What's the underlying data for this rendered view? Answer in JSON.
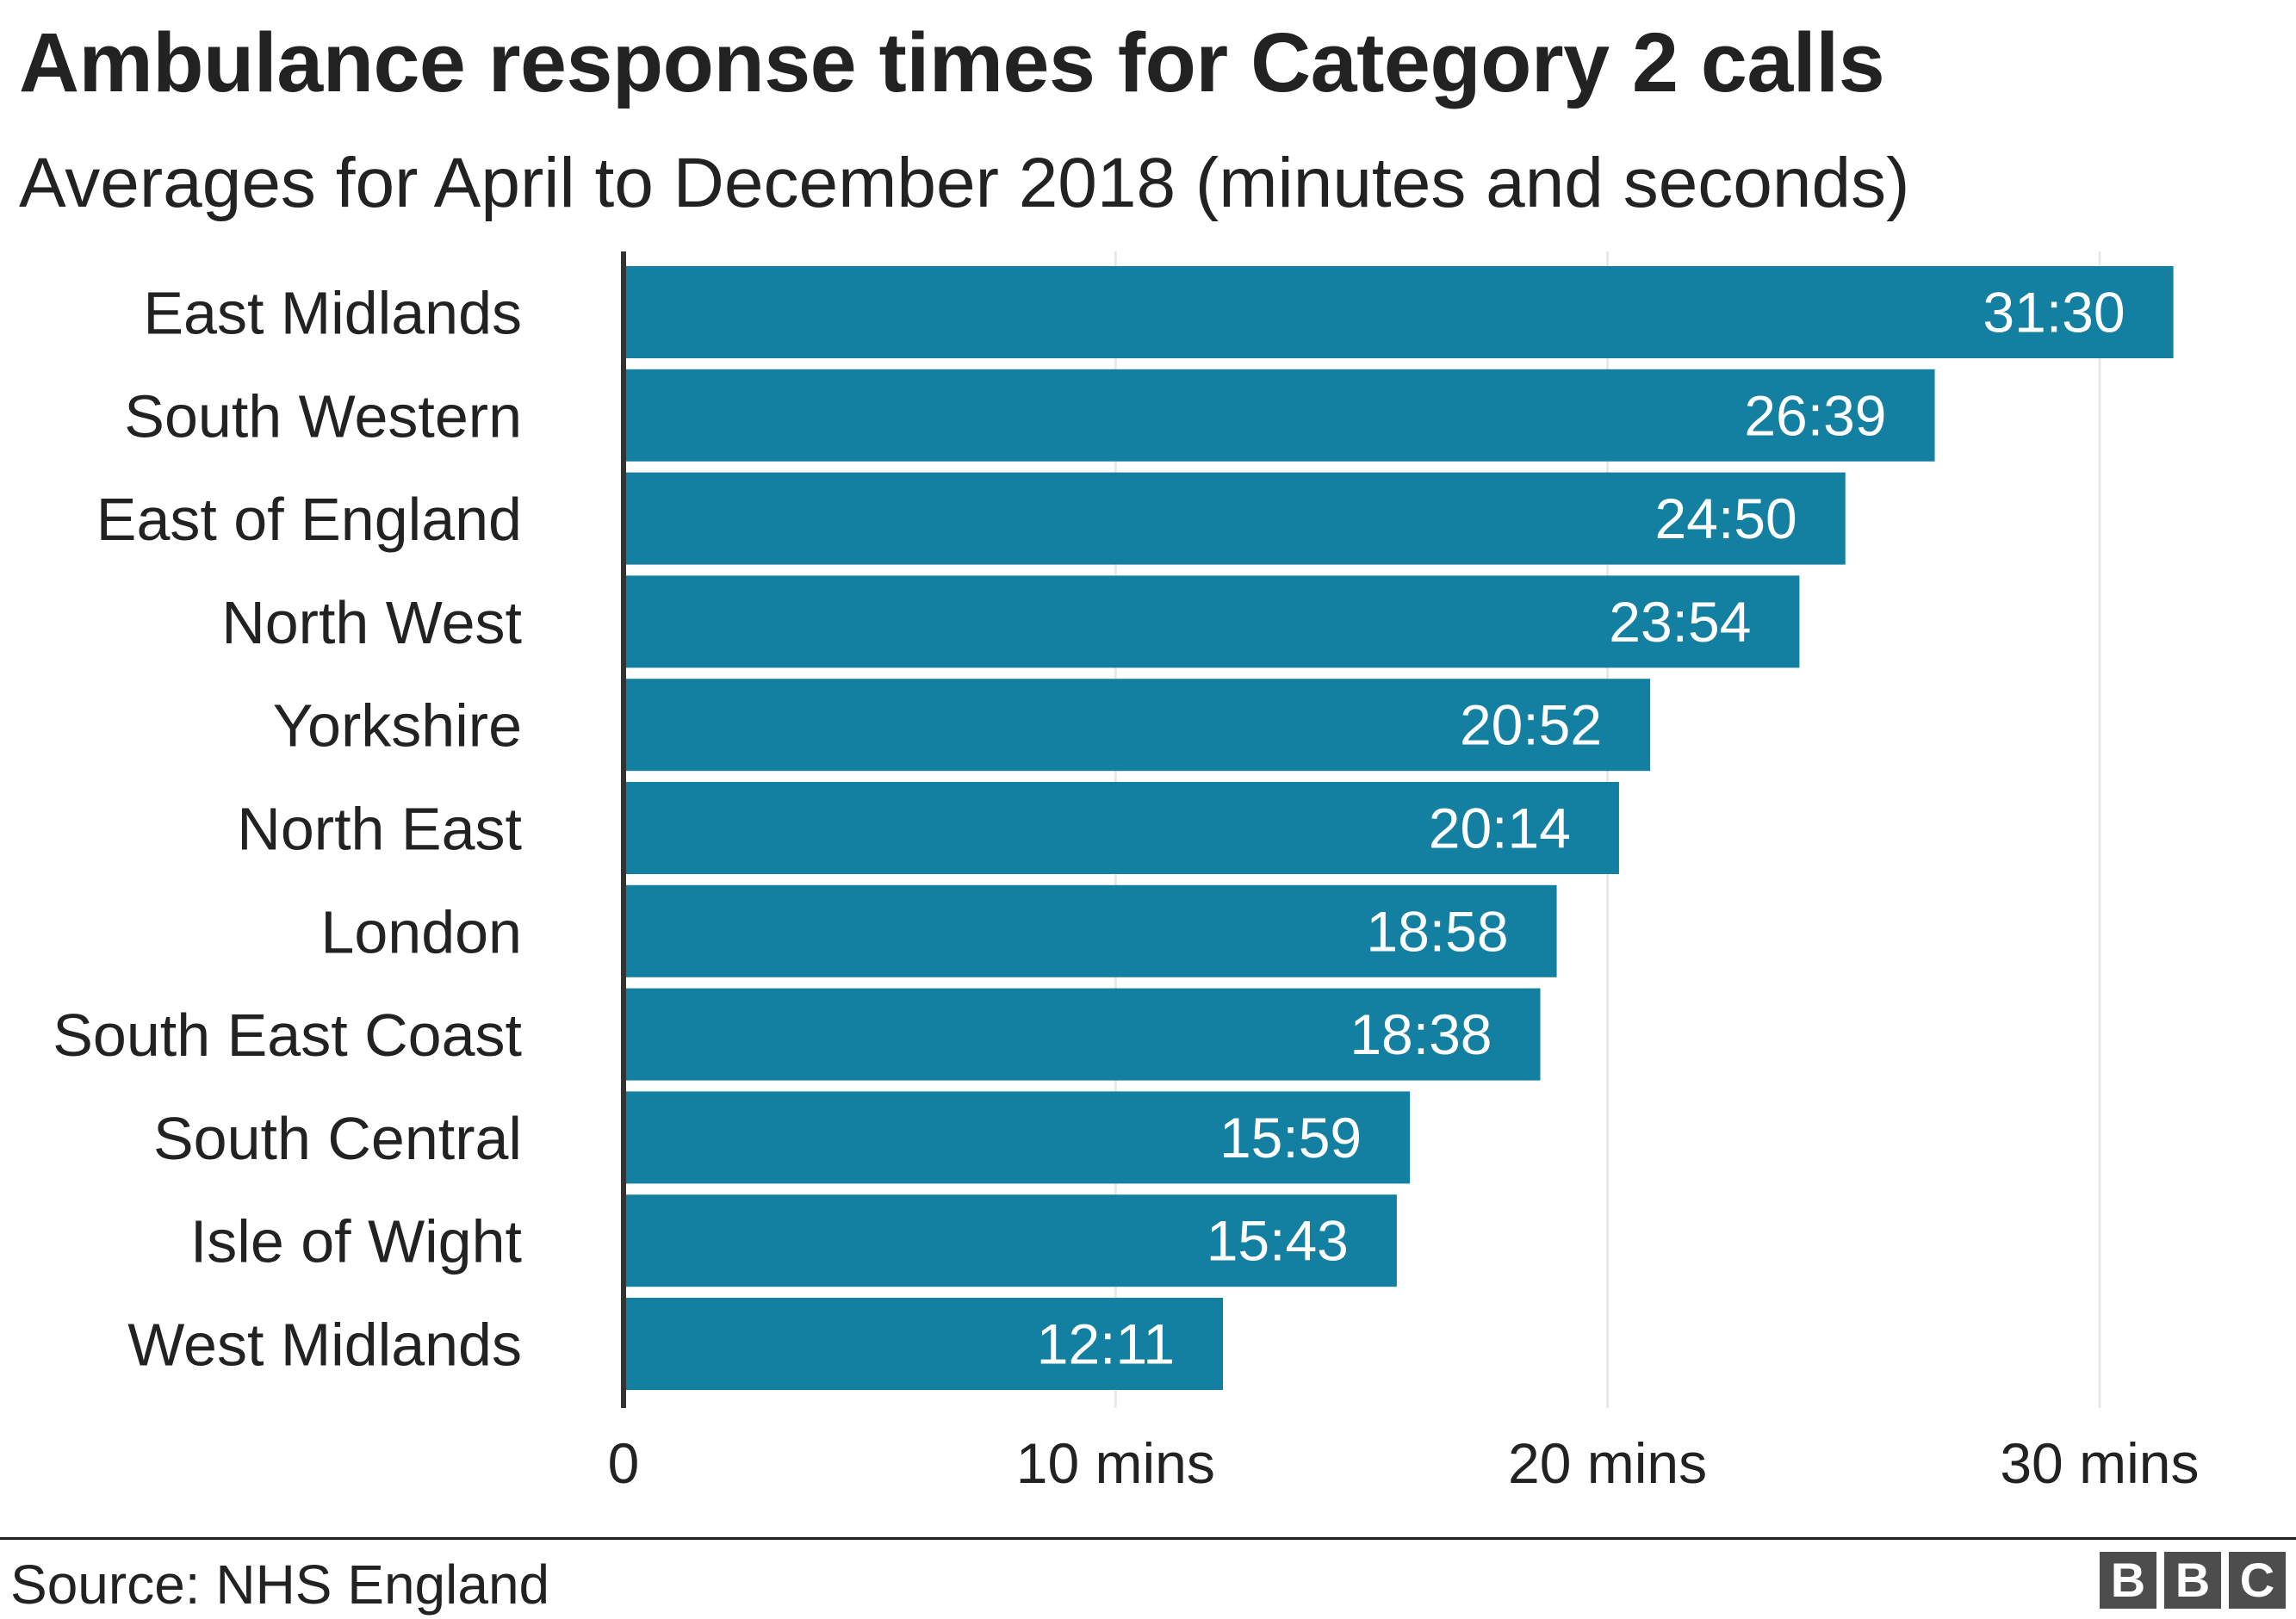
{
  "chart_data": {
    "type": "bar",
    "orientation": "horizontal",
    "title": "Ambulance response times for Category 2 calls",
    "subtitle": "Averages for April to December 2018 (minutes and seconds)",
    "categories": [
      "East Midlands",
      "South Western",
      "East of England",
      "North West",
      "Yorkshire",
      "North East",
      "London",
      "South East Coast",
      "South Central",
      "Isle of Wight",
      "West Midlands"
    ],
    "values": [
      31.5,
      26.65,
      24.8333,
      23.9,
      20.8667,
      20.2333,
      18.9667,
      18.6333,
      15.9833,
      15.7167,
      12.1833
    ],
    "data_labels": [
      "31:30",
      "26:39",
      "24:50",
      "23:54",
      "20:52",
      "20:14",
      "18:58",
      "18:38",
      "15:59",
      "15:43",
      "12:11"
    ],
    "xlim": [
      0,
      32
    ],
    "x_ticks": [
      0,
      10,
      20,
      30
    ],
    "x_tick_labels": [
      "0",
      "10 mins",
      "20 mins",
      "30 mins"
    ],
    "xlabel": "",
    "ylabel": "",
    "grid": "vertical",
    "bar_color": "#1380A1",
    "grid_color": "#e8e8e8"
  },
  "footer": {
    "source": "Source: NHS England",
    "logo_letters": [
      "B",
      "B",
      "C"
    ]
  }
}
